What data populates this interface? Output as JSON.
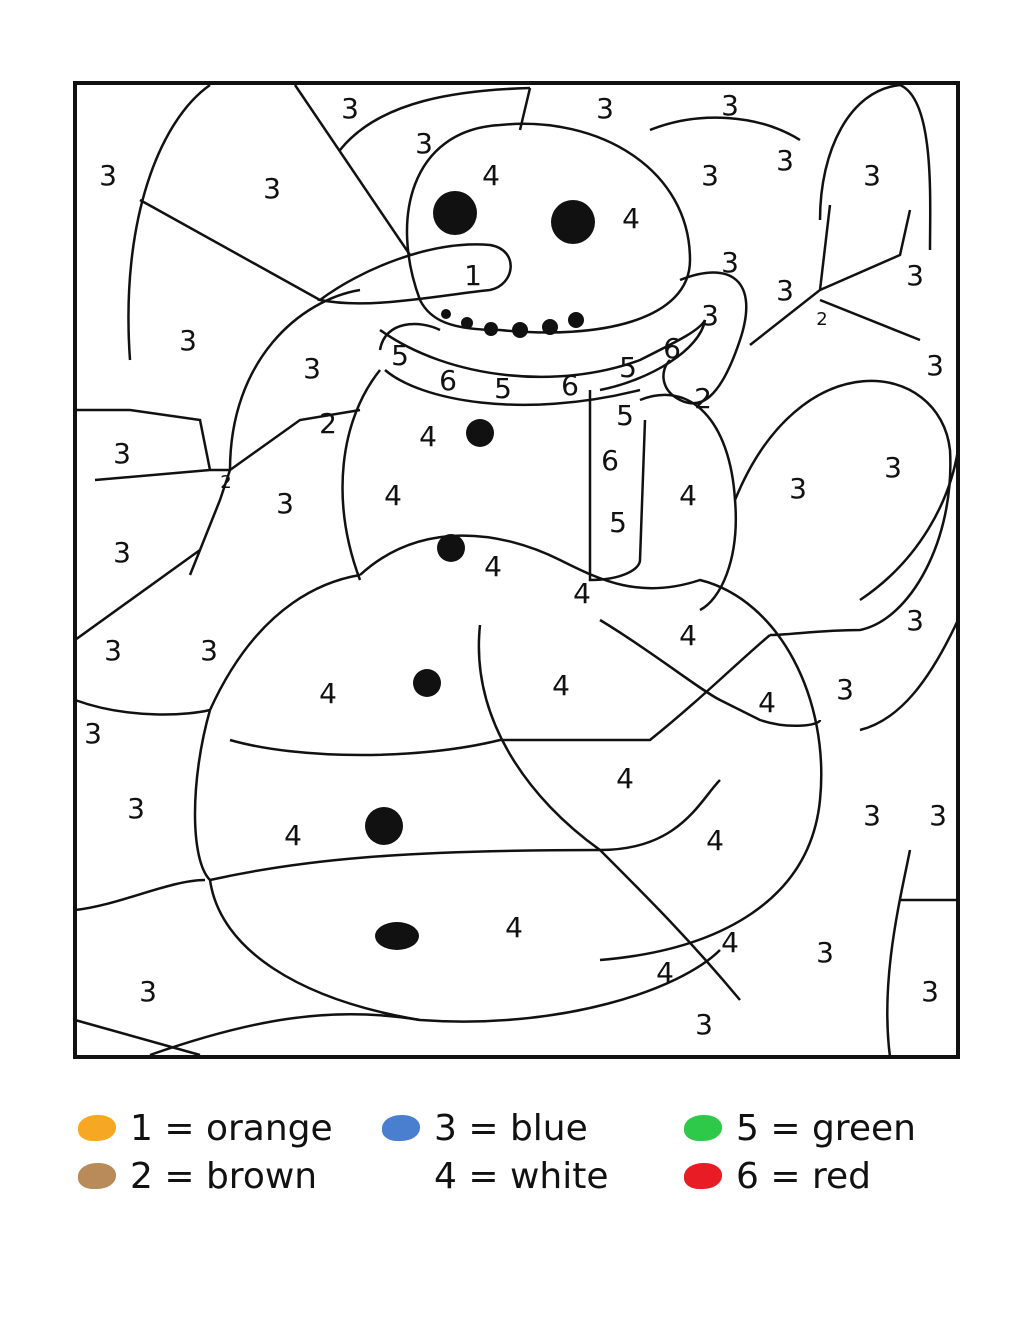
{
  "worksheet": {
    "region_numbers": [
      "3",
      "3",
      "3",
      "3",
      "3",
      "3",
      "4",
      "3",
      "3",
      "3",
      "4",
      "3",
      "3",
      "1",
      "3",
      "3",
      "2",
      "3",
      "3",
      "5",
      "6",
      "5",
      "6",
      "5",
      "6",
      "3",
      "2",
      "2",
      "4",
      "5",
      "3",
      "6",
      "2",
      "4",
      "4",
      "3",
      "3",
      "3",
      "5",
      "3",
      "4",
      "4",
      "3",
      "3",
      "4",
      "3",
      "4",
      "4",
      "4",
      "3",
      "3",
      "4",
      "3",
      "4",
      "4",
      "3",
      "3",
      "4",
      "4",
      "3",
      "4",
      "3",
      "3",
      "3"
    ]
  },
  "legend": [
    {
      "label": "1 = orange",
      "color": "#f7a823"
    },
    {
      "label": "2 = brown",
      "color": "#b98a5a"
    },
    {
      "label": "3 = blue",
      "color": "#4a7fd0"
    },
    {
      "label": "4 = white",
      "color": "#ffffff"
    },
    {
      "label": "5 = green",
      "color": "#2fc94a"
    },
    {
      "label": "6 = red",
      "color": "#e81c24"
    }
  ]
}
